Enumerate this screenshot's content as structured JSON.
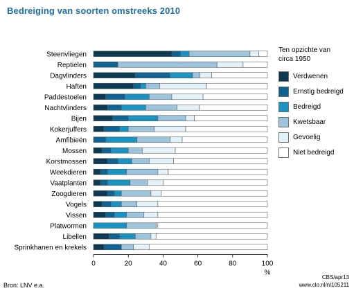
{
  "title": "Bedreiging van soorten omstreeks 2010",
  "legend": {
    "title_lines": [
      "Ten opzichte van",
      "circa 1950"
    ],
    "items": [
      {
        "label": "Verdwenen",
        "color": "#0d3a52"
      },
      {
        "label": "Ernstig bedreigd",
        "color": "#0f6393"
      },
      {
        "label": "Bedreigd",
        "color": "#1a93c4"
      },
      {
        "label": "Kwetsbaar",
        "color": "#9dc4dd"
      },
      {
        "label": "Gevoelig",
        "color": "#e3f1f8"
      },
      {
        "label": "Niet bedreigd",
        "color": "#ffffff"
      }
    ]
  },
  "source": "Bron: LNV e.a.",
  "credit": [
    "CBS/apr13",
    "www.clo.nl/nl105211"
  ],
  "chart_data": {
    "type": "bar",
    "orientation": "horizontal",
    "stacked": true,
    "xunit": "%",
    "xlim": [
      0,
      100
    ],
    "xticks": [
      "0",
      "20",
      "40",
      "60",
      "80",
      "100"
    ],
    "categories": [
      "Steenvliegen",
      "Reptielen",
      "Dagvlinders",
      "Haften",
      "Paddestoelen",
      "Nachtvlinders",
      "Bijen",
      "Kokerjuffers",
      "Amfibieën",
      "Mossen",
      "Korstmossen",
      "Weekdieren",
      "Vaatplanten",
      "Zoogdieren",
      "Vogels",
      "Vissen",
      "Platwormen",
      "Libellen",
      "Sprinkhanen en krekels"
    ],
    "series": [
      {
        "name": "Verdwenen",
        "values": [
          45,
          0,
          24,
          23,
          7,
          8,
          11,
          6,
          0,
          5,
          8,
          4,
          4,
          8,
          5,
          7,
          0,
          9,
          6
        ]
      },
      {
        "name": "Ernstig bedreigd",
        "values": [
          5,
          14,
          20,
          4,
          11,
          8,
          9,
          9,
          7,
          5,
          6,
          4,
          4,
          4,
          5,
          5,
          0,
          6,
          10
        ]
      },
      {
        "name": "Bedreigd",
        "values": [
          5,
          0,
          13,
          3,
          14,
          14,
          17,
          5,
          18,
          10,
          8,
          11,
          13,
          4,
          6,
          7,
          19,
          9,
          0
        ]
      },
      {
        "name": "Kwetsbaar",
        "values": [
          35,
          57,
          4,
          8,
          13,
          18,
          16,
          15,
          19,
          8,
          10,
          18,
          10,
          17,
          9,
          10,
          17,
          9,
          7
        ]
      },
      {
        "name": "Gevoelig",
        "values": [
          5,
          15,
          7,
          27,
          18,
          13,
          5,
          18,
          7,
          19,
          14,
          6,
          9,
          6,
          12,
          8,
          1,
          3,
          9
        ]
      },
      {
        "name": "Niet bedreigd",
        "values": [
          5,
          14,
          32,
          35,
          37,
          39,
          42,
          47,
          49,
          53,
          54,
          57,
          60,
          61,
          63,
          63,
          63,
          64,
          68
        ]
      }
    ]
  }
}
